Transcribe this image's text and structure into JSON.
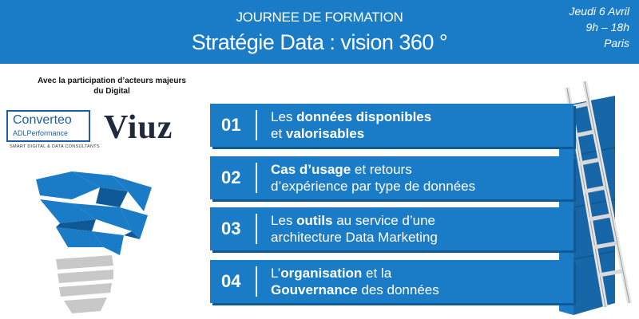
{
  "header": {
    "kicker": "JOURNEE DE FORMATION",
    "title": "Stratégie Data : vision 360 °",
    "date_lines": [
      "Jeudi 6 Avril",
      "9h – 18h",
      "Paris"
    ]
  },
  "partners": {
    "intro": "Avec la participation d’acteurs majeurs du Digital",
    "converteo_name": "Converteo",
    "converteo_sub": "ADLPerformance",
    "converteo_tagline": "SMART DIGITAL & DATA CONSULTANTS",
    "viuz": "Viuz"
  },
  "agenda": [
    {
      "num": "01",
      "l1a": "Les ",
      "l1b": "données disponibles",
      "l1c": "",
      "l2a": "et ",
      "l2b": "valorisables",
      "l2c": ""
    },
    {
      "num": "02",
      "l1a": "",
      "l1b": "Cas d’usage",
      "l1c": " et retours",
      "l2a": "d’expérience par type de données",
      "l2b": "",
      "l2c": ""
    },
    {
      "num": "03",
      "l1a": "Les ",
      "l1b": "outils",
      "l1c": " au service d’une",
      "l2a": "architecture Data Marketing",
      "l2b": "",
      "l2c": ""
    },
    {
      "num": "04",
      "l1a": "L’",
      "l1b": "organisation",
      "l1c": " et la",
      "l2a": "",
      "l2b": "Gouvernance",
      "l2c": " des données"
    }
  ],
  "colors": {
    "brand_blue": "#1a7bc7",
    "dark_blue": "#0f5a96"
  }
}
